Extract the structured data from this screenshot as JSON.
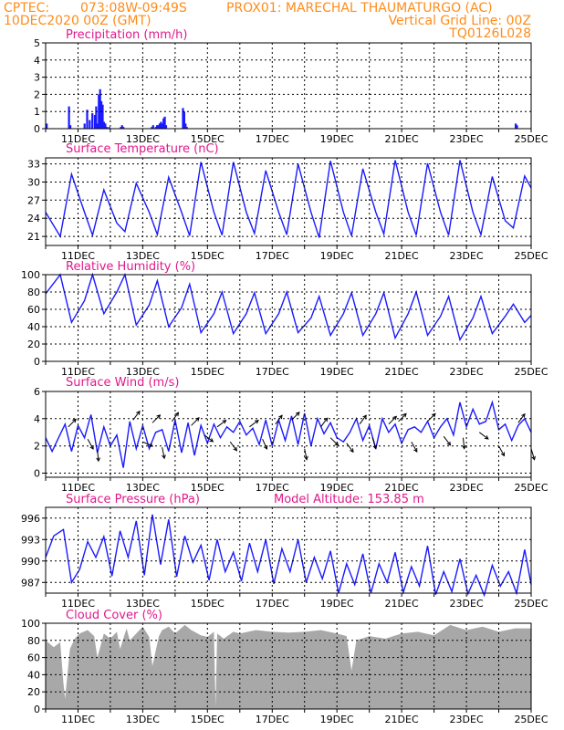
{
  "header": {
    "line1_left": "CPTEC:",
    "line1_coords": "073:08W-09:49S",
    "line1_station": "PROX01: MARECHAL THAUMATURGO (AC)",
    "line2_left": "10DEC2020 00Z (GMT)",
    "line2_right": "Vertical Grid Line: 00Z",
    "line3_right": "TQ0126L028"
  },
  "colors": {
    "header": "#ff8c1a",
    "title": "#e0198c",
    "series": "#1a1aff",
    "cloud": "#a8a8a8",
    "arrow": "#000000"
  },
  "chart_data": [
    {
      "type": "bar",
      "title": "Precipitation (mm/h)",
      "xlabels": [
        "11DEC",
        "13DEC",
        "15DEC",
        "17DEC",
        "19DEC",
        "21DEC",
        "23DEC",
        "25DEC"
      ],
      "ylim": [
        0,
        5
      ],
      "yticks": [
        0,
        1,
        2,
        3,
        4,
        5
      ],
      "grid": true,
      "x_days": [
        10.03,
        10.72,
        10.76,
        11.2,
        11.28,
        11.36,
        11.44,
        11.52,
        11.56,
        11.6,
        11.64,
        11.68,
        11.72,
        11.76,
        11.8,
        11.84,
        11.88,
        11.96,
        12.32,
        12.36,
        12.4,
        13.28,
        13.32,
        13.4,
        13.44,
        13.48,
        13.52,
        13.56,
        13.6,
        13.64,
        13.68,
        13.72,
        14.24,
        14.28,
        14.32,
        14.36,
        24.52,
        24.56
      ],
      "values": [
        0.3,
        1.3,
        0.2,
        0.3,
        1.1,
        0.5,
        0.9,
        0.8,
        1.3,
        0.3,
        2.0,
        2.3,
        1.6,
        1.4,
        0.4,
        0.3,
        0.1,
        0.1,
        0.1,
        0.2,
        0.1,
        0.1,
        0.2,
        0.1,
        0.2,
        0.2,
        0.3,
        0.4,
        0.3,
        0.6,
        0.7,
        0.2,
        1.2,
        1.0,
        0.3,
        0.1,
        0.3,
        0.2
      ]
    },
    {
      "type": "line",
      "title": "Surface Temperature (nC)",
      "xlabels": [
        "11DEC",
        "13DEC",
        "15DEC",
        "17DEC",
        "19DEC",
        "21DEC",
        "23DEC",
        "25DEC"
      ],
      "ylim": [
        19.5,
        34
      ],
      "yticks": [
        21,
        24,
        27,
        30,
        33
      ],
      "grid": true,
      "x_days": [
        10.0,
        10.45,
        10.8,
        11.2,
        11.45,
        11.8,
        12.2,
        12.45,
        12.8,
        13.2,
        13.45,
        13.8,
        14.2,
        14.45,
        14.8,
        15.2,
        15.45,
        15.8,
        16.2,
        16.45,
        16.8,
        17.2,
        17.45,
        17.8,
        18.2,
        18.45,
        18.8,
        19.2,
        19.45,
        19.8,
        20.2,
        20.45,
        20.8,
        21.2,
        21.45,
        21.8,
        22.2,
        22.45,
        22.8,
        23.2,
        23.45,
        23.8,
        24.2,
        24.45,
        24.8,
        25.0
      ],
      "values": [
        25.0,
        21.0,
        31.3,
        25.0,
        21.2,
        28.7,
        23.2,
        21.8,
        29.8,
        25.0,
        21.3,
        30.8,
        25.0,
        21.1,
        33.3,
        25.0,
        21.2,
        33.3,
        25.0,
        21.5,
        31.9,
        25.0,
        21.3,
        33.0,
        25.0,
        20.8,
        33.5,
        25.0,
        21.1,
        32.2,
        25.0,
        21.4,
        33.6,
        25.0,
        21.2,
        33.1,
        25.0,
        21.2,
        33.6,
        25.0,
        21.3,
        30.9,
        23.6,
        22.4,
        31.0,
        29.0
      ]
    },
    {
      "type": "line",
      "title": "Relative Humidity (%)",
      "xlabels": [
        "11DEC",
        "13DEC",
        "15DEC",
        "17DEC",
        "19DEC",
        "21DEC",
        "23DEC",
        "25DEC"
      ],
      "ylim": [
        0,
        100
      ],
      "yticks": [
        0,
        20,
        40,
        60,
        80,
        100
      ],
      "grid": true,
      "x_days": [
        10.0,
        10.45,
        10.8,
        11.2,
        11.45,
        11.8,
        12.2,
        12.45,
        12.8,
        13.2,
        13.45,
        13.8,
        14.2,
        14.45,
        14.8,
        15.2,
        15.45,
        15.8,
        16.2,
        16.45,
        16.8,
        17.2,
        17.45,
        17.8,
        18.2,
        18.45,
        18.8,
        19.2,
        19.45,
        19.8,
        20.2,
        20.45,
        20.8,
        21.2,
        21.45,
        21.8,
        22.2,
        22.45,
        22.8,
        23.2,
        23.45,
        23.8,
        24.2,
        24.45,
        24.8,
        25.0
      ],
      "values": [
        78,
        100,
        45,
        70,
        100,
        55,
        80,
        100,
        42,
        65,
        93,
        40,
        62,
        89,
        33,
        55,
        80,
        32,
        55,
        79,
        32,
        55,
        80,
        33,
        50,
        75,
        30,
        55,
        79,
        30,
        55,
        79,
        27,
        55,
        80,
        30,
        52,
        75,
        25,
        50,
        75,
        32,
        52,
        66,
        45,
        53
      ]
    },
    {
      "type": "line",
      "title": "Surface Wind (m/s)",
      "xlabels": [
        "11DEC",
        "13DEC",
        "15DEC",
        "17DEC",
        "19DEC",
        "21DEC",
        "23DEC",
        "25DEC"
      ],
      "ylim": [
        -0.3,
        6
      ],
      "yticks": [
        0,
        2,
        4,
        6
      ],
      "grid": true,
      "x_days": [
        10.0,
        10.2,
        10.4,
        10.6,
        10.8,
        11.0,
        11.2,
        11.4,
        11.6,
        11.8,
        12.0,
        12.2,
        12.4,
        12.6,
        12.8,
        13.0,
        13.2,
        13.4,
        13.6,
        13.8,
        14.0,
        14.2,
        14.4,
        14.6,
        14.8,
        15.0,
        15.2,
        15.4,
        15.6,
        15.8,
        16.0,
        16.2,
        16.4,
        16.6,
        16.8,
        17.0,
        17.2,
        17.4,
        17.6,
        17.8,
        18.0,
        18.2,
        18.4,
        18.6,
        18.8,
        19.0,
        19.2,
        19.4,
        19.6,
        19.8,
        20.0,
        20.2,
        20.4,
        20.6,
        20.8,
        21.0,
        21.2,
        21.4,
        21.6,
        21.8,
        22.0,
        22.2,
        22.4,
        22.6,
        22.8,
        23.0,
        23.2,
        23.4,
        23.6,
        23.8,
        24.0,
        24.2,
        24.4,
        24.6,
        24.8,
        25.0
      ],
      "values": [
        2.6,
        1.6,
        2.6,
        3.6,
        1.6,
        3.5,
        2.6,
        4.3,
        1.5,
        3.4,
        2.0,
        2.8,
        0.4,
        3.8,
        1.8,
        3.5,
        1.8,
        3.0,
        3.2,
        1.6,
        3.9,
        1.5,
        3.7,
        1.3,
        3.5,
        2.2,
        3.6,
        2.6,
        3.4,
        3.0,
        3.8,
        2.8,
        3.3,
        2.1,
        3.9,
        2.0,
        3.9,
        2.4,
        4.2,
        2.1,
        4.4,
        2.0,
        4.0,
        2.9,
        3.7,
        2.6,
        2.3,
        3.0,
        4.0,
        2.4,
        3.5,
        1.8,
        4.0,
        3.0,
        3.6,
        2.2,
        3.2,
        3.4,
        3.0,
        3.8,
        2.6,
        3.4,
        4.0,
        2.8,
        5.2,
        3.4,
        4.7,
        3.6,
        3.8,
        5.2,
        3.2,
        3.6,
        2.4,
        3.5,
        4.0,
        3.0
      ],
      "arrows": [
        {
          "day": 10.7,
          "speed": 3.4,
          "u": 0.7,
          "v": 0.7
        },
        {
          "day": 11.3,
          "speed": 2.5,
          "u": 0.5,
          "v": -0.9
        },
        {
          "day": 11.6,
          "speed": 1.7,
          "u": 0.1,
          "v": -1.0
        },
        {
          "day": 12.7,
          "speed": 3.9,
          "u": 0.6,
          "v": 0.8
        },
        {
          "day": 13.0,
          "speed": 2.3,
          "u": 0.9,
          "v": -0.4
        },
        {
          "day": 13.3,
          "speed": 3.7,
          "u": 0.7,
          "v": 0.7
        },
        {
          "day": 13.6,
          "speed": 1.9,
          "u": 0.2,
          "v": -1.0
        },
        {
          "day": 13.9,
          "speed": 3.8,
          "u": 0.6,
          "v": 0.8
        },
        {
          "day": 14.5,
          "speed": 3.5,
          "u": 0.7,
          "v": 0.7
        },
        {
          "day": 14.9,
          "speed": 2.8,
          "u": 0.8,
          "v": -0.6
        },
        {
          "day": 15.3,
          "speed": 3.4,
          "u": 0.8,
          "v": 0.6
        },
        {
          "day": 15.7,
          "speed": 2.3,
          "u": 0.6,
          "v": -0.8
        },
        {
          "day": 16.3,
          "speed": 3.4,
          "u": 0.8,
          "v": 0.6
        },
        {
          "day": 16.7,
          "speed": 2.5,
          "u": 0.4,
          "v": -0.9
        },
        {
          "day": 17.1,
          "speed": 3.6,
          "u": 0.6,
          "v": 0.8
        },
        {
          "day": 17.6,
          "speed": 3.9,
          "u": 0.7,
          "v": 0.7
        },
        {
          "day": 18.0,
          "speed": 1.8,
          "u": 0.2,
          "v": -1.0
        },
        {
          "day": 18.5,
          "speed": 3.4,
          "u": 0.6,
          "v": 0.8
        },
        {
          "day": 18.8,
          "speed": 2.6,
          "u": 0.7,
          "v": -0.7
        },
        {
          "day": 19.3,
          "speed": 2.2,
          "u": 0.6,
          "v": -0.8
        },
        {
          "day": 19.7,
          "speed": 3.6,
          "u": 0.6,
          "v": 0.8
        },
        {
          "day": 20.1,
          "speed": 2.6,
          "u": 0.3,
          "v": -1.0
        },
        {
          "day": 20.6,
          "speed": 3.6,
          "u": 0.7,
          "v": 0.7
        },
        {
          "day": 20.9,
          "speed": 3.8,
          "u": 0.7,
          "v": 0.7
        },
        {
          "day": 21.3,
          "speed": 2.3,
          "u": 0.5,
          "v": -0.9
        },
        {
          "day": 21.8,
          "speed": 3.8,
          "u": 0.7,
          "v": 0.7
        },
        {
          "day": 22.3,
          "speed": 2.7,
          "u": 0.6,
          "v": -0.8
        },
        {
          "day": 22.9,
          "speed": 2.6,
          "u": 0.1,
          "v": -1.0
        },
        {
          "day": 23.4,
          "speed": 3.0,
          "u": 0.8,
          "v": -0.6
        },
        {
          "day": 24.0,
          "speed": 2.0,
          "u": 0.5,
          "v": -0.9
        },
        {
          "day": 24.6,
          "speed": 3.7,
          "u": 0.6,
          "v": 0.8
        },
        {
          "day": 25.0,
          "speed": 1.8,
          "u": 0.3,
          "v": -1.0
        }
      ]
    },
    {
      "type": "line",
      "title": "Surface Pressure (hPa)",
      "annotation": "Model Altitude: 153.85 m",
      "xlabels": [
        "11DEC",
        "13DEC",
        "15DEC",
        "17DEC",
        "19DEC",
        "21DEC",
        "23DEC",
        "25DEC"
      ],
      "ylim": [
        985.5,
        997.5
      ],
      "yticks": [
        987,
        990,
        993,
        996
      ],
      "grid": true,
      "x_days": [
        10.0,
        10.25,
        10.55,
        10.8,
        11.05,
        11.3,
        11.55,
        11.8,
        12.05,
        12.3,
        12.55,
        12.8,
        13.05,
        13.3,
        13.55,
        13.8,
        14.05,
        14.3,
        14.55,
        14.8,
        15.05,
        15.3,
        15.55,
        15.8,
        16.05,
        16.3,
        16.55,
        16.8,
        17.05,
        17.3,
        17.55,
        17.8,
        18.05,
        18.3,
        18.55,
        18.8,
        19.05,
        19.3,
        19.55,
        19.8,
        20.05,
        20.3,
        20.55,
        20.8,
        21.05,
        21.3,
        21.55,
        21.8,
        22.05,
        22.3,
        22.55,
        22.8,
        23.05,
        23.3,
        23.55,
        23.8,
        24.05,
        24.3,
        24.55,
        24.8,
        25.0
      ],
      "values": [
        990.5,
        993.5,
        994.4,
        987.0,
        988.8,
        992.7,
        990.5,
        993.4,
        987.9,
        994.2,
        990.5,
        995.6,
        988.0,
        996.5,
        989.5,
        995.8,
        987.8,
        993.5,
        989.8,
        992.2,
        987.3,
        993.0,
        988.5,
        991.2,
        987.2,
        992.5,
        988.5,
        993.0,
        986.8,
        991.7,
        988.5,
        993.0,
        987.0,
        990.5,
        987.5,
        991.4,
        985.5,
        989.6,
        986.7,
        991.0,
        985.5,
        989.6,
        987.0,
        991.2,
        985.6,
        989.2,
        986.5,
        992.1,
        985.3,
        988.5,
        985.7,
        990.3,
        985.4,
        988.0,
        985.2,
        989.4,
        986.5,
        988.5,
        985.5,
        991.6,
        986.7
      ]
    },
    {
      "type": "area",
      "title": "Cloud Cover (%)",
      "xlabels": [
        "11DEC",
        "13DEC",
        "15DEC",
        "17DEC",
        "19DEC",
        "21DEC",
        "23DEC",
        "25DEC"
      ],
      "ylim": [
        0,
        100
      ],
      "yticks": [
        0,
        20,
        40,
        60,
        80,
        100
      ],
      "grid": true,
      "x_days": [
        10.0,
        10.25,
        10.45,
        10.55,
        10.6,
        10.75,
        10.9,
        11.05,
        11.3,
        11.5,
        11.6,
        11.8,
        12.0,
        12.2,
        12.3,
        12.5,
        12.6,
        12.8,
        13.0,
        13.2,
        13.3,
        13.5,
        13.6,
        13.8,
        14.0,
        14.3,
        14.5,
        14.8,
        15.0,
        15.2,
        15.25,
        15.3,
        15.5,
        15.8,
        16.0,
        16.5,
        17.0,
        17.5,
        18.0,
        18.5,
        19.0,
        19.3,
        19.45,
        19.6,
        20.0,
        20.5,
        21.0,
        21.5,
        22.0,
        22.5,
        23.0,
        23.5,
        24.0,
        24.5,
        25.0
      ],
      "values": [
        80,
        72,
        78,
        30,
        12,
        70,
        82,
        88,
        92,
        85,
        60,
        88,
        82,
        90,
        70,
        94,
        80,
        88,
        96,
        84,
        50,
        85,
        92,
        96,
        88,
        98,
        92,
        86,
        84,
        90,
        3,
        88,
        82,
        90,
        88,
        92,
        90,
        89,
        90,
        92,
        88,
        85,
        45,
        80,
        85,
        82,
        88,
        90,
        86,
        98,
        92,
        96,
        90,
        94,
        94
      ]
    }
  ]
}
